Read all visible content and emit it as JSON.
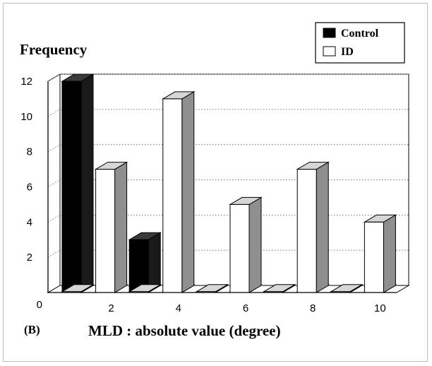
{
  "chart_data": {
    "type": "bar",
    "panel_label": "(B)",
    "ylabel": "Frequency",
    "xlabel": "MLD : absolute value (degree)",
    "ylim": [
      0,
      12
    ],
    "yticks": [
      "0",
      "2",
      "4",
      "6",
      "8",
      "10",
      "12"
    ],
    "categories": [
      "1",
      "2",
      "3",
      "4",
      "5",
      "6",
      "7",
      "8",
      "9",
      "10"
    ],
    "xtick_labels": [
      {
        "category_index": 1,
        "label": "2"
      },
      {
        "category_index": 3,
        "label": "4"
      },
      {
        "category_index": 5,
        "label": "6"
      },
      {
        "category_index": 7,
        "label": "8"
      },
      {
        "category_index": 9,
        "label": "10"
      }
    ],
    "grid": "horizontal-dotted",
    "legend": "top-right",
    "series": [
      {
        "name": "Control",
        "color": "#000000",
        "values": [
          12,
          0,
          3,
          0,
          0,
          0,
          0,
          0,
          0,
          0
        ]
      },
      {
        "name": "ID",
        "color": "#ffffff",
        "values": [
          0,
          7,
          0,
          11,
          0,
          5,
          0,
          7,
          0,
          4
        ]
      }
    ]
  }
}
